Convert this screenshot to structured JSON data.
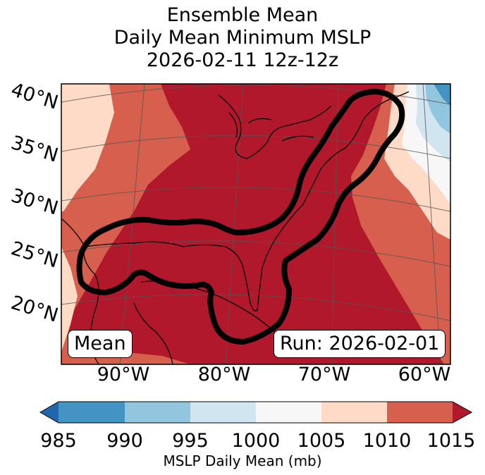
{
  "title": {
    "line1": "Ensemble Mean",
    "line2": "Daily Mean Minimum MSLP",
    "line3": "2026-02-11 12z-12z"
  },
  "map": {
    "lat_labels": [
      "40°N",
      "35°N",
      "30°N",
      "25°N",
      "20°N"
    ],
    "lon_labels": [
      "90°W",
      "80°W",
      "70°W",
      "60°W"
    ],
    "mean_badge": "Mean",
    "run_badge": "Run: 2026-02-01",
    "colors": {
      "fill_1015_plus": "#b2182b",
      "fill_1010_1015": "#d6604d",
      "fill_1005_1010": "#fddbc7",
      "fill_1000_1005": "#f7f7f7",
      "fill_995_1000": "#d1e5f0",
      "fill_990_995": "#92c5de",
      "fill_985_990": "#4393c3",
      "fill_below_985": "#2166ac",
      "probability_outline": "#000000"
    }
  },
  "colorbar": {
    "tick_labels": [
      "985",
      "990",
      "995",
      "1000",
      "1005",
      "1010",
      "1015"
    ],
    "segment_colors": [
      "#4393c3",
      "#92c5de",
      "#d1e5f0",
      "#f7f7f7",
      "#fddbc7",
      "#d6604d"
    ],
    "under_color": "#2166ac",
    "over_color": "#b2182b",
    "label": "MSLP Daily Mean (mb)"
  }
}
